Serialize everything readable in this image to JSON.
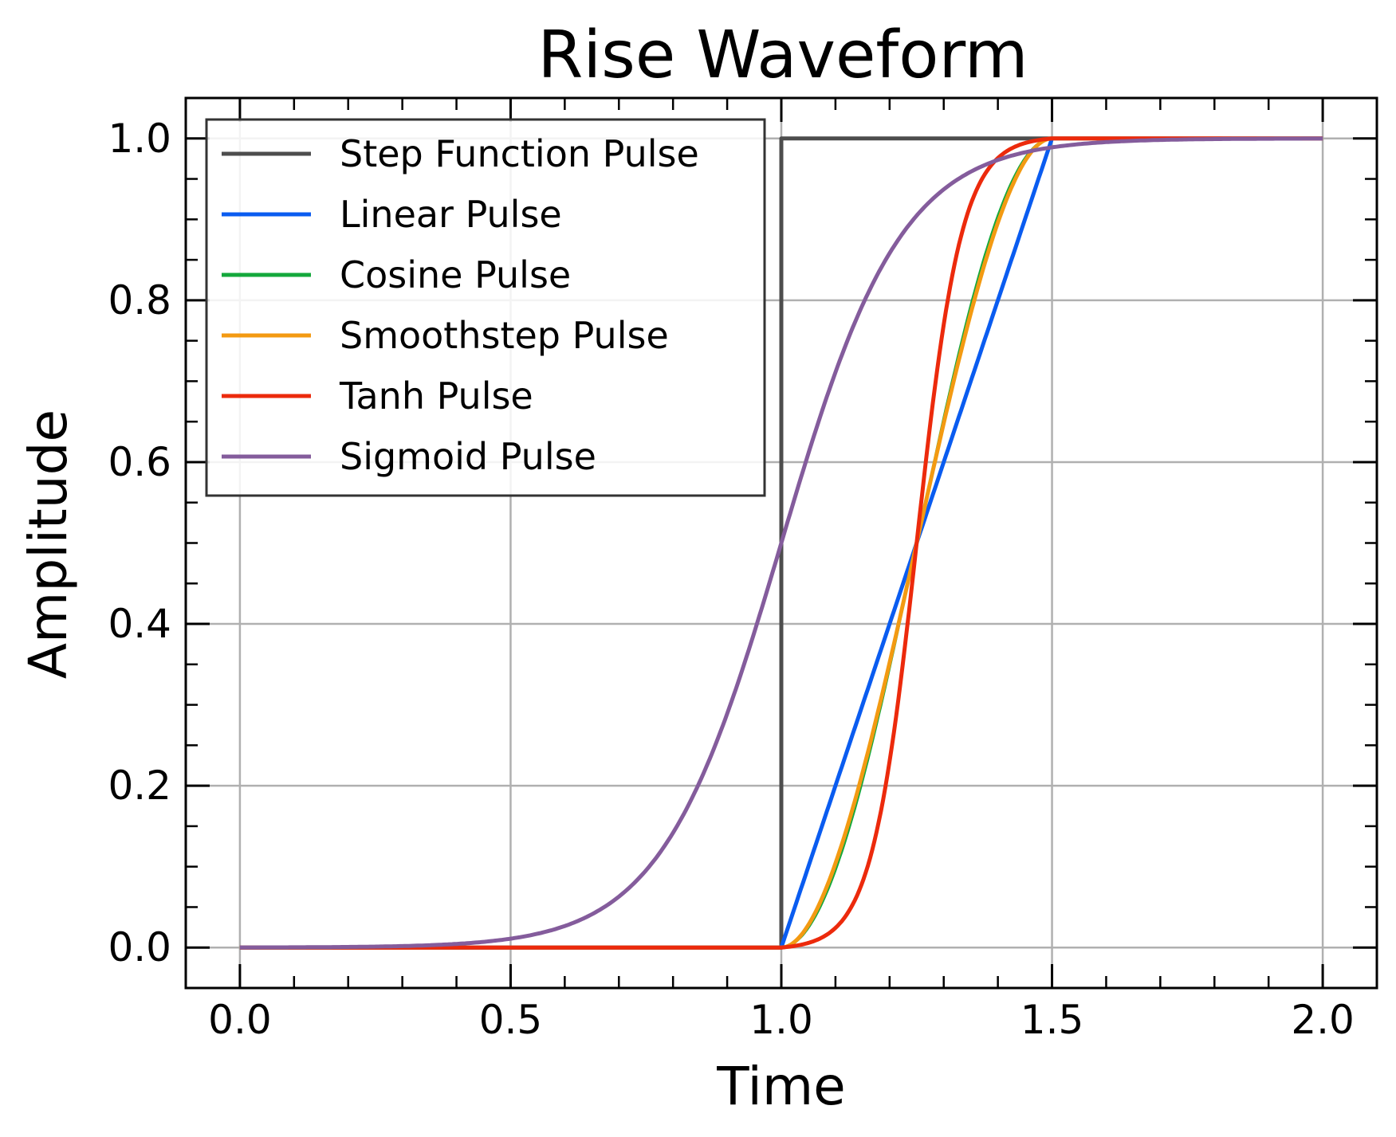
{
  "chart_data": {
    "type": "line",
    "title": "Rise Waveform",
    "xlabel": "Time",
    "ylabel": "Amplitude",
    "xlim": [
      -0.1,
      2.1
    ],
    "ylim": [
      -0.05,
      1.05
    ],
    "xticks": [
      0.0,
      0.5,
      1.0,
      1.5,
      2.0
    ],
    "xtick_labels": [
      "0.0",
      "0.5",
      "1.0",
      "1.5",
      "2.0"
    ],
    "yticks": [
      0.0,
      0.2,
      0.4,
      0.6,
      0.8,
      1.0
    ],
    "ytick_labels": [
      "0.0",
      "0.2",
      "0.4",
      "0.6",
      "0.8",
      "1.0"
    ],
    "grid": true,
    "legend_position": "top-left",
    "rise_start": 1.0,
    "rise_end": 1.5,
    "series": [
      {
        "name": "Step Function Pulse",
        "color": "#4d4d4d",
        "kind": "step",
        "x": [
          0.0,
          1.0,
          1.0,
          1.5
        ],
        "y": [
          0.0,
          0.0,
          1.0,
          1.0
        ]
      },
      {
        "name": "Linear Pulse",
        "color": "#0a5cf0",
        "kind": "linear",
        "x": [
          0.0,
          1.0,
          1.5,
          2.0
        ],
        "y": [
          0.0,
          0.0,
          1.0,
          1.0
        ]
      },
      {
        "name": "Cosine Pulse",
        "color": "#14a83c",
        "kind": "cosine",
        "x": [
          0.0,
          1.0,
          1.25,
          1.5,
          2.0
        ],
        "y": [
          0.0,
          0.0,
          0.5,
          1.0,
          1.0
        ]
      },
      {
        "name": "Smoothstep Pulse",
        "color": "#f39a12",
        "kind": "smoothstep",
        "x": [
          0.0,
          1.0,
          1.25,
          1.5,
          2.0
        ],
        "y": [
          0.0,
          0.0,
          0.5,
          1.0,
          1.0
        ]
      },
      {
        "name": "Tanh Pulse",
        "color": "#ec2a0c",
        "kind": "tanh",
        "x": [
          0.0,
          1.0,
          1.25,
          1.5,
          2.0
        ],
        "y": [
          0.0,
          0.0,
          0.5,
          1.0,
          1.0
        ]
      },
      {
        "name": "Sigmoid Pulse",
        "color": "#845c9c",
        "kind": "sigmoid",
        "x": [
          0.0,
          0.5,
          0.75,
          1.0,
          1.25,
          1.5,
          2.0
        ],
        "y": [
          0.0,
          0.012,
          0.12,
          0.5,
          0.88,
          0.988,
          1.0
        ]
      }
    ]
  }
}
